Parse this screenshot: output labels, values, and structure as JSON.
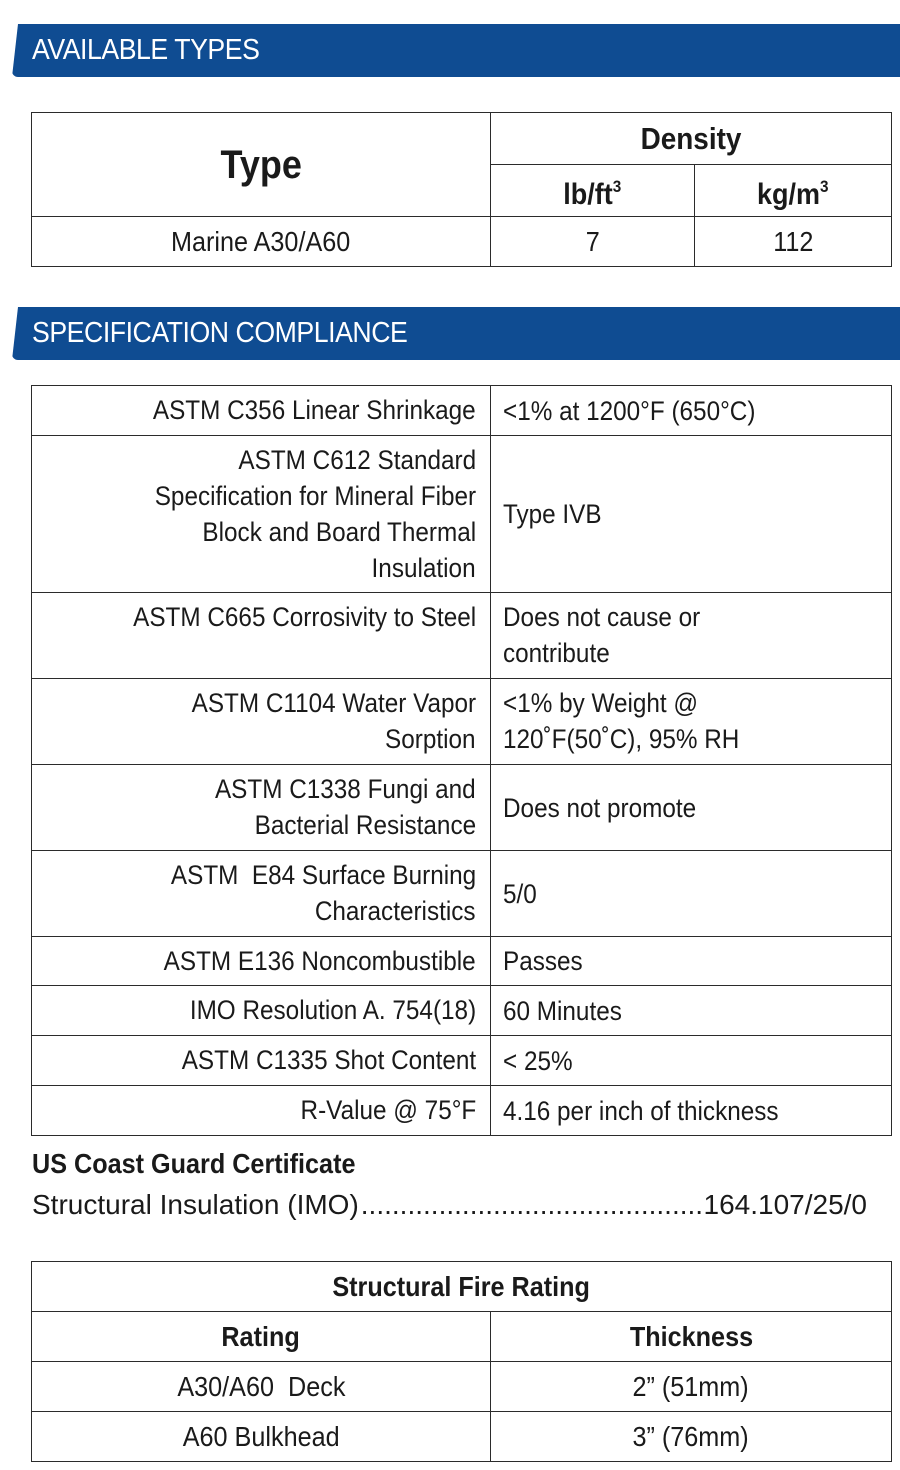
{
  "sections": {
    "available_types": {
      "heading": "AVAILABLE TYPES",
      "table": {
        "header_type": "Type",
        "header_density": "Density",
        "unit_lb": "lb/ft",
        "unit_lb_exp": "3",
        "unit_kg": "kg/m",
        "unit_kg_exp": "3",
        "rows": [
          {
            "type": "Marine A30/A60",
            "lb_ft3": "7",
            "kg_m3": "112"
          }
        ]
      }
    },
    "specification_compliance": {
      "heading": "SPECIFICATION COMPLIANCE",
      "rows": [
        {
          "label": [
            "ASTM C356 Linear Shrinkage"
          ],
          "value": [
            "<1% at 1200°F (650°C)"
          ]
        },
        {
          "label": [
            "ASTM C612 Standard",
            "Specification for Mineral Fiber",
            "Block and Board Thermal",
            "Insulation"
          ],
          "value": [
            "Type IVB"
          ]
        },
        {
          "label": [
            "ASTM C665 Corrosivity to Steel"
          ],
          "value": [
            "Does not cause or",
            "contribute"
          ]
        },
        {
          "label": [
            "ASTM C1104 Water Vapor",
            "Sorption"
          ],
          "value": [
            "<1% by Weight @",
            "120˚F(50˚C), 95% RH"
          ]
        },
        {
          "label": [
            "ASTM C1338 Fungi and",
            "Bacterial Resistance"
          ],
          "value": [
            "Does not promote"
          ]
        },
        {
          "label": [
            "ASTM  E84 Surface Burning",
            "Characteristics"
          ],
          "value": [
            "5/0"
          ]
        },
        {
          "label": [
            "ASTM E136 Noncombustible"
          ],
          "value": [
            "Passes"
          ]
        },
        {
          "label": [
            "IMO Resolution A. 754(18)"
          ],
          "value": [
            "60 Minutes"
          ]
        },
        {
          "label": [
            "ASTM C1335 Shot Content"
          ],
          "value": [
            "< 25%"
          ]
        },
        {
          "label": [
            "R-Value @ 75°F"
          ],
          "value": [
            "4.16 per inch of thickness"
          ]
        }
      ]
    },
    "uscg_certificate": {
      "title": "US Coast Guard Certificate",
      "item_label": "Structural Insulation (IMO)",
      "item_value": "164.107/25/0"
    },
    "structural_fire_rating": {
      "title": "Structural Fire Rating",
      "header_rating": "Rating",
      "header_thickness": "Thickness",
      "rows": [
        {
          "rating": "A30/A60  Deck",
          "thickness": "2” (51mm)"
        },
        {
          "rating": "A60 Bulkhead",
          "thickness": "3” (76mm)"
        }
      ]
    }
  },
  "colors": {
    "banner_blue": "#0f4c92",
    "text": "#1a1a1a",
    "border": "#2b2b2b"
  }
}
